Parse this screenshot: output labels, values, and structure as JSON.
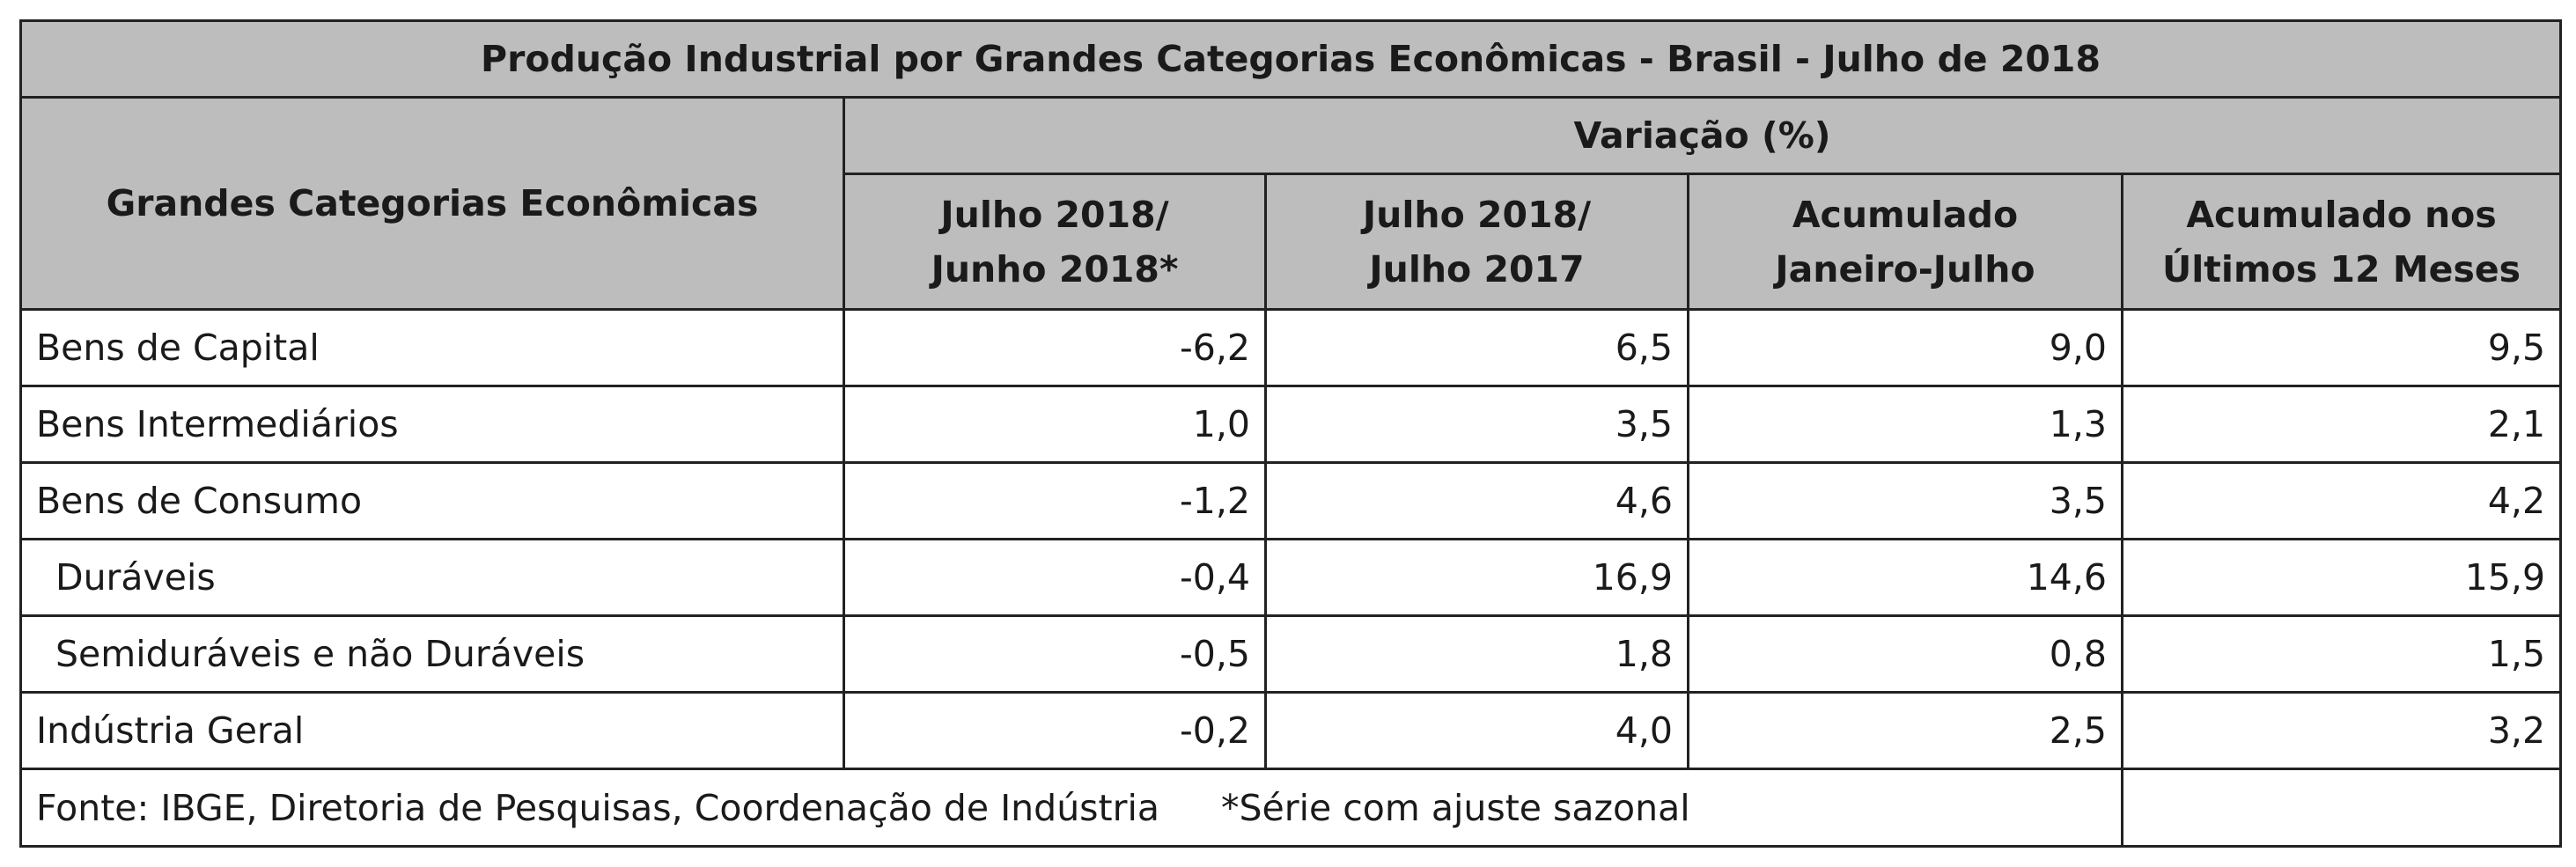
{
  "chart_data": {
    "type": "table",
    "title": "Produção Industrial por Grandes Categorias Econômicas - Brasil - Julho de 2018",
    "row_header": "Grandes Categorias Econômicas",
    "group_header": "Variação (%)",
    "columns": [
      [
        "Julho 2018/",
        "Junho 2018*"
      ],
      [
        "Julho 2018/",
        "Julho 2017"
      ],
      [
        "Acumulado",
        "Janeiro-Julho"
      ],
      [
        "Acumulado nos",
        "Últimos 12 Meses"
      ]
    ],
    "rows": [
      {
        "label": "Bens de Capital",
        "indent": false,
        "values": [
          "-6,2",
          "6,5",
          "9,0",
          "9,5"
        ]
      },
      {
        "label": "Bens Intermediários",
        "indent": false,
        "values": [
          "1,0",
          "3,5",
          "1,3",
          "2,1"
        ]
      },
      {
        "label": "Bens de Consumo",
        "indent": false,
        "values": [
          "-1,2",
          "4,6",
          "3,5",
          "4,2"
        ]
      },
      {
        "label": "Duráveis",
        "indent": true,
        "values": [
          "-0,4",
          "16,9",
          "14,6",
          "15,9"
        ]
      },
      {
        "label": "Semiduráveis e não Duráveis",
        "indent": true,
        "values": [
          "-0,5",
          "1,8",
          "0,8",
          "1,5"
        ]
      },
      {
        "label": "Indústria Geral",
        "indent": false,
        "values": [
          "-0,2",
          "4,0",
          "2,5",
          "3,2"
        ]
      }
    ],
    "footnote": {
      "source": "Fonte: IBGE, Diretoria de Pesquisas, Coordenação de Indústria",
      "note": "*Série com ajuste sazonal"
    }
  }
}
